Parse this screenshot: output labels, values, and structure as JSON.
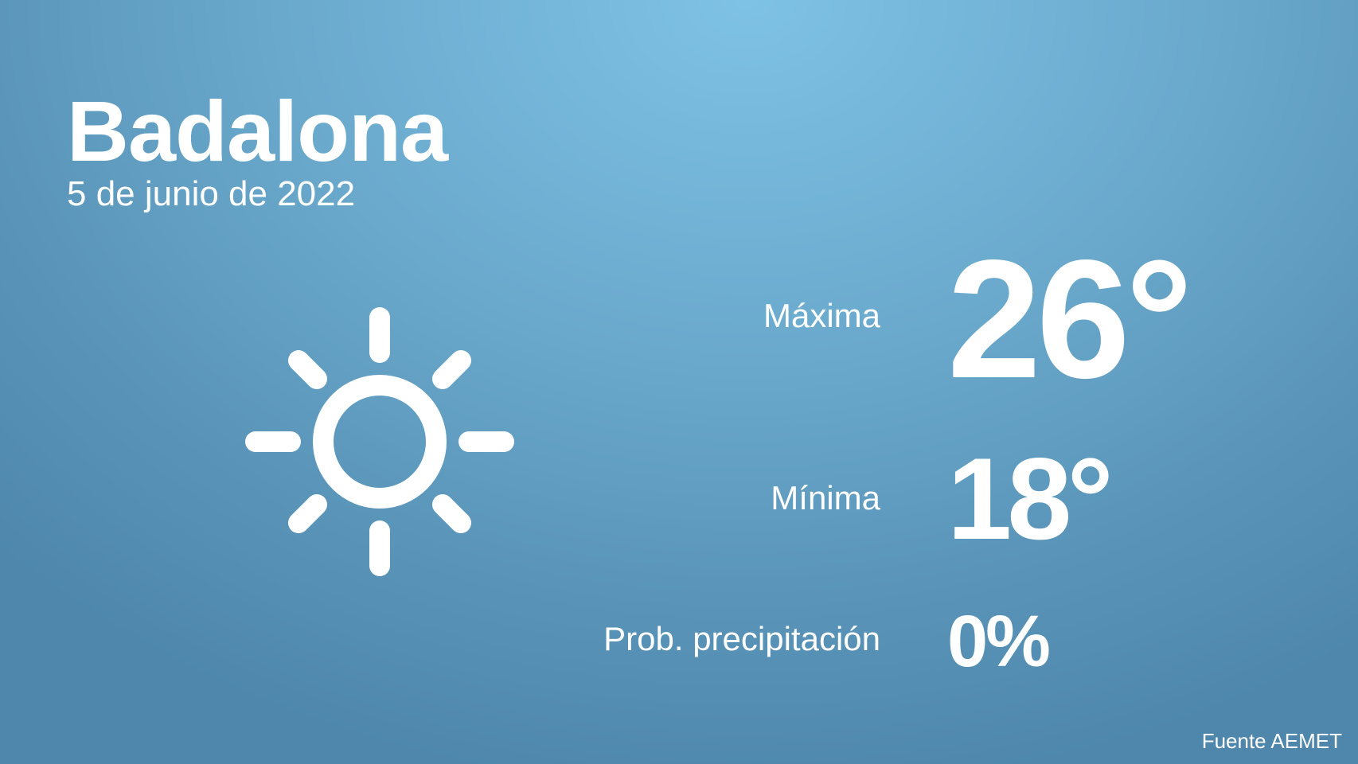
{
  "city": "Badalona",
  "date": "5 de junio de 2022",
  "weather_icon": "sun-icon",
  "forecast": {
    "max_label": "Máxima",
    "max_value": "26°",
    "min_label": "Mínima",
    "min_value": "18°",
    "precip_label": "Prob. precipitación",
    "precip_value": "0%"
  },
  "source": "Fuente AEMET",
  "colors": {
    "background_top": "#7ec2e6",
    "background_bottom": "#4e87ab",
    "text": "#ffffff"
  }
}
